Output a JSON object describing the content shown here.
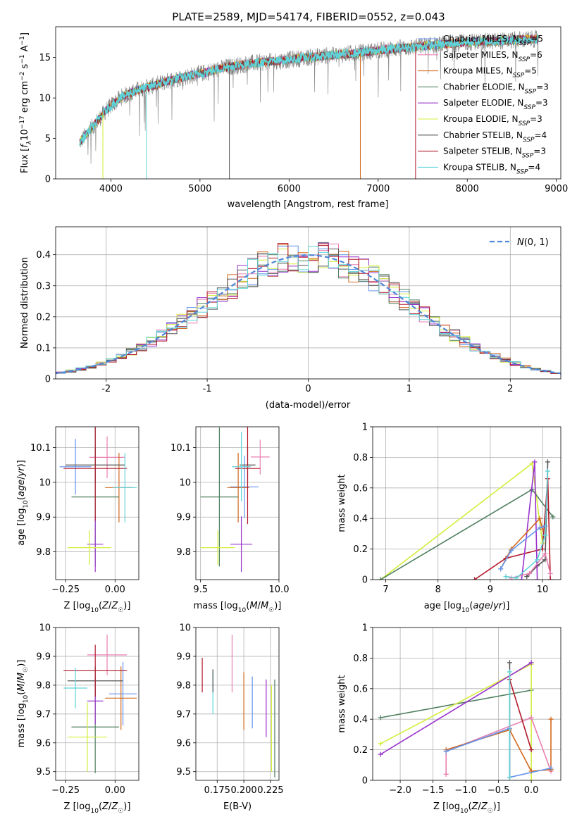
{
  "title": "PLATE=2589, MJD=54174, FIBERID=0552, z=0.043",
  "colors": {
    "Chabrier MILES": "#6495ed",
    "Salpeter MILES": "#e87fb0",
    "Kroupa MILES": "#d2691e",
    "Chabrier ELODIE": "#4f7f5f",
    "Salpeter ELODIE": "#9932cc",
    "Kroupa ELODIE": "#d4ed3a",
    "Chabrier STELIB": "#555555",
    "Salpeter STELIB": "#b2182b",
    "Kroupa STELIB": "#5fd3d8",
    "data": "#808080",
    "gaussian": "#4f86d8"
  },
  "chart_data": [
    {
      "type": "line",
      "panel": "spectrum",
      "title": "PLATE=2589, MJD=54174, FIBERID=0552, z=0.043",
      "xlabel": "wavelength [Angstrom, rest frame]",
      "ylabel": "Flux [f_λ 10^-17 erg cm^-2 s^-1 A^-1]",
      "xlim": [
        3380,
        9050
      ],
      "ylim": [
        0,
        18.8
      ],
      "xticks": [
        4000,
        5000,
        6000,
        7000,
        8000,
        9000
      ],
      "yticks": [
        0,
        5,
        10,
        15
      ],
      "legend_position": "top-right",
      "continuum": {
        "x": [
          3650,
          3800,
          3950,
          4100,
          4300,
          4500,
          4700,
          5000,
          5300,
          5600,
          5900,
          6200,
          6500,
          6800,
          7100,
          7400,
          7700,
          8000,
          8300,
          8600,
          8800
        ],
        "y": [
          4.5,
          6.5,
          8.5,
          10.0,
          11.0,
          11.6,
          12.3,
          13.0,
          13.8,
          14.3,
          14.6,
          15.0,
          15.3,
          15.6,
          16.0,
          16.3,
          16.6,
          16.9,
          17.0,
          17.2,
          17.3
        ]
      },
      "series": [
        {
          "name": "Chabrier MILES",
          "nssp": "5"
        },
        {
          "name": "Salpeter MILES",
          "nssp": "6"
        },
        {
          "name": "Kroupa MILES",
          "nssp": "5"
        },
        {
          "name": "Chabrier ELODIE",
          "nssp": "3"
        },
        {
          "name": "Salpeter ELODIE",
          "nssp": "3"
        },
        {
          "name": "Kroupa ELODIE",
          "nssp": "3"
        },
        {
          "name": "Chabrier STELIB",
          "nssp": "4"
        },
        {
          "name": "Salpeter STELIB",
          "nssp": "3"
        },
        {
          "name": "Kroupa STELIB",
          "nssp": "4"
        }
      ]
    },
    {
      "type": "histogram",
      "panel": "residuals",
      "xlabel": "(data-model)/error",
      "ylabel": "Normed distribution",
      "xlim": [
        -2.5,
        2.5
      ],
      "ylim": [
        0,
        0.49
      ],
      "xticks": [
        -2,
        -1,
        0,
        1,
        2
      ],
      "yticks": [
        0.0,
        0.1,
        0.2,
        0.3,
        0.4
      ],
      "grid": true,
      "legend_position": "top-right",
      "legend_label": "N(0,1)"
    },
    {
      "type": "scatter",
      "panel": "age-vs-Z",
      "xlabel": "Z [log10(Z/Z☉)]",
      "ylabel": "age [log10(age/yr)]",
      "xlim": [
        -0.3,
        0.12
      ],
      "ylim": [
        9.72,
        10.16
      ],
      "xticks": [
        -0.25,
        0.0
      ],
      "yticks": [
        9.8,
        9.9,
        10.0,
        10.1
      ],
      "grid": true,
      "points": [
        {
          "series": "Chabrier MILES",
          "x": -0.2,
          "y": 10.045,
          "xerr": 0.08,
          "yerr": 0.08
        },
        {
          "series": "Salpeter MILES",
          "x": -0.04,
          "y": 10.072,
          "xerr": 0.09,
          "yerr": 0.06
        },
        {
          "series": "Kroupa MILES",
          "x": 0.02,
          "y": 9.985,
          "xerr": 0.07,
          "yerr": 0.1
        },
        {
          "series": "Chabrier ELODIE",
          "x": -0.1,
          "y": 9.958,
          "xerr": 0.12,
          "yerr": 0.2
        },
        {
          "series": "Salpeter ELODIE",
          "x": -0.1,
          "y": 9.822,
          "xerr": 0.04,
          "yerr": 0.08
        },
        {
          "series": "Kroupa ELODIE",
          "x": -0.13,
          "y": 9.812,
          "xerr": 0.11,
          "yerr": 0.05
        },
        {
          "series": "Chabrier STELIB",
          "x": -0.1,
          "y": 10.05,
          "xerr": 0.15,
          "yerr": 0.05
        },
        {
          "series": "Salpeter STELIB",
          "x": -0.1,
          "y": 10.04,
          "xerr": 0.16,
          "yerr": 0.15
        },
        {
          "series": "Kroupa STELIB",
          "x": 0.05,
          "y": 9.985,
          "xerr": 0.06,
          "yerr": 0.1
        }
      ]
    },
    {
      "type": "scatter",
      "panel": "age-vs-mass",
      "xlabel": "mass [log10(M/M☉)]",
      "ylabel": "",
      "xlim": [
        9.47,
        10.0
      ],
      "ylim": [
        9.72,
        10.16
      ],
      "xticks": [
        9.5,
        10.0
      ],
      "yticks": [
        9.8,
        9.9,
        10.0,
        10.1
      ],
      "grid": true,
      "points": [
        {
          "series": "Chabrier MILES",
          "x": 9.78,
          "y": 9.987,
          "xerr": 0.09,
          "yerr": 0.09
        },
        {
          "series": "Salpeter MILES",
          "x": 9.88,
          "y": 10.073,
          "xerr": 0.06,
          "yerr": 0.05
        },
        {
          "series": "Kroupa MILES",
          "x": 9.74,
          "y": 9.985,
          "xerr": 0.07,
          "yerr": 0.1
        },
        {
          "series": "Chabrier ELODIE",
          "x": 9.62,
          "y": 9.958,
          "xerr": 0.12,
          "yerr": 0.2
        },
        {
          "series": "Salpeter ELODIE",
          "x": 9.76,
          "y": 9.822,
          "xerr": 0.07,
          "yerr": 0.08
        },
        {
          "series": "Kroupa ELODIE",
          "x": 9.61,
          "y": 9.812,
          "xerr": 0.11,
          "yerr": 0.05
        },
        {
          "series": "Chabrier STELIB",
          "x": 9.8,
          "y": 10.05,
          "xerr": 0.05,
          "yerr": 0.05
        },
        {
          "series": "Salpeter STELIB",
          "x": 9.8,
          "y": 10.04,
          "xerr": 0.08,
          "yerr": 0.16
        },
        {
          "series": "Kroupa STELIB",
          "x": 9.76,
          "y": 10.045,
          "xerr": 0.06,
          "yerr": 0.1
        }
      ]
    },
    {
      "type": "line",
      "panel": "mass-weight-vs-age",
      "xlabel": "age [log10(age/yr)]",
      "ylabel": "mass weight",
      "xlim": [
        6.75,
        10.35
      ],
      "ylim": [
        0,
        1.0
      ],
      "xticks": [
        7,
        8,
        9,
        10
      ],
      "yticks": [
        0.0,
        0.2,
        0.4,
        0.6,
        0.8,
        1.0
      ],
      "grid": true,
      "series": [
        {
          "name": "Kroupa ELODIE",
          "x": [
            6.9,
            9.8,
            10.0
          ],
          "y": [
            0.0,
            0.76,
            0.24
          ]
        },
        {
          "name": "Chabrier ELODIE",
          "x": [
            6.9,
            9.8,
            10.2
          ],
          "y": [
            0.0,
            0.59,
            0.41
          ]
        },
        {
          "name": "Salpeter STELIB",
          "x": [
            8.7,
            9.3,
            10.0,
            10.1,
            10.15
          ],
          "y": [
            0.0,
            0.14,
            0.2,
            0.66,
            0.0
          ]
        },
        {
          "name": "Chabrier STELIB",
          "x": [
            9.7,
            9.9,
            10.05,
            10.1
          ],
          "y": [
            0.02,
            0.09,
            0.13,
            0.77
          ]
        },
        {
          "name": "Salpeter ELODIE",
          "x": [
            9.6,
            9.85,
            9.9
          ],
          "y": [
            0.0,
            0.77,
            0.0
          ]
        },
        {
          "name": "Kroupa MILES",
          "x": [
            9.2,
            9.4,
            9.95,
            10.0
          ],
          "y": [
            0.07,
            0.2,
            0.4,
            0.33
          ]
        },
        {
          "name": "Chabrier MILES",
          "x": [
            9.2,
            9.4,
            9.95,
            10.05
          ],
          "y": [
            0.07,
            0.19,
            0.34,
            0.35
          ]
        },
        {
          "name": "Salpeter MILES",
          "x": [
            9.4,
            9.75,
            10.05,
            10.15
          ],
          "y": [
            0.01,
            0.04,
            0.17,
            0.04
          ]
        },
        {
          "name": "Kroupa STELIB",
          "x": [
            9.3,
            9.5,
            9.9,
            10.05,
            10.1
          ],
          "y": [
            0.02,
            0.01,
            0.13,
            0.29,
            0.71
          ]
        }
      ]
    },
    {
      "type": "scatter",
      "panel": "mass-vs-Z",
      "xlabel": "Z [log10(Z/Z☉)]",
      "ylabel": "mass [log10(M/M☉)]",
      "xlim": [
        -0.3,
        0.12
      ],
      "ylim": [
        9.47,
        10.0
      ],
      "xticks": [
        -0.25,
        0.0
      ],
      "yticks": [
        9.5,
        9.6,
        9.7,
        9.8,
        9.9,
        10.0
      ],
      "grid": true,
      "points": [
        {
          "series": "Chabrier MILES",
          "x": 0.04,
          "y": 9.77,
          "xerr": 0.07,
          "yerr": 0.11
        },
        {
          "series": "Salpeter MILES",
          "x": -0.04,
          "y": 9.905,
          "xerr": 0.1,
          "yerr": 0.07
        },
        {
          "series": "Kroupa MILES",
          "x": 0.03,
          "y": 9.755,
          "xerr": 0.08,
          "yerr": 0.11
        },
        {
          "series": "Chabrier ELODIE",
          "x": -0.1,
          "y": 9.655,
          "xerr": 0.12,
          "yerr": 0.16
        },
        {
          "series": "Salpeter ELODIE",
          "x": -0.1,
          "y": 9.745,
          "xerr": 0.04,
          "yerr": 0.08
        },
        {
          "series": "Kroupa ELODIE",
          "x": -0.14,
          "y": 9.62,
          "xerr": 0.1,
          "yerr": 0.12
        },
        {
          "series": "Chabrier STELIB",
          "x": -0.1,
          "y": 9.815,
          "xerr": 0.14,
          "yerr": 0.05
        },
        {
          "series": "Salpeter STELIB",
          "x": -0.1,
          "y": 9.85,
          "xerr": 0.16,
          "yerr": 0.09
        },
        {
          "series": "Kroupa STELIB",
          "x": -0.2,
          "y": 9.79,
          "xerr": 0.06,
          "yerr": 0.07
        }
      ]
    },
    {
      "type": "scatter",
      "panel": "mass-vs-ebv",
      "xlabel": "E(B-V)",
      "ylabel": "",
      "xlim": [
        0.155,
        0.233
      ],
      "ylim": [
        9.47,
        10.0
      ],
      "xticks": [
        0.175,
        0.2,
        0.225
      ],
      "xticklabels": [
        "0.175",
        "0.200",
        "0.225"
      ],
      "yticks": [
        9.5,
        9.6,
        9.7,
        9.8,
        9.9,
        10.0
      ],
      "grid": true,
      "points": [
        {
          "series": "Salpeter STELIB",
          "x": 0.161,
          "y": 9.835,
          "yerr": 0.06
        },
        {
          "series": "Kroupa STELIB",
          "x": 0.171,
          "y": 9.775,
          "yerr": 0.075
        },
        {
          "series": "Chabrier STELIB",
          "x": 0.171,
          "y": 9.815,
          "yerr": 0.04
        },
        {
          "series": "Salpeter MILES",
          "x": 0.189,
          "y": 9.875,
          "yerr": 0.1
        },
        {
          "series": "Kroupa MILES",
          "x": 0.2,
          "y": 9.745,
          "yerr": 0.1
        },
        {
          "series": "Chabrier MILES",
          "x": 0.208,
          "y": 9.74,
          "yerr": 0.09
        },
        {
          "series": "Salpeter ELODIE",
          "x": 0.221,
          "y": 9.72,
          "yerr": 0.1
        },
        {
          "series": "Kroupa ELODIE",
          "x": 0.226,
          "y": 9.65,
          "yerr": 0.15
        },
        {
          "series": "Chabrier ELODIE",
          "x": 0.229,
          "y": 9.65,
          "yerr": 0.17
        }
      ]
    },
    {
      "type": "line",
      "panel": "mass-weight-vs-Z",
      "xlabel": "Z [log10(Z/Z☉)]",
      "ylabel": "mass weight",
      "xlim": [
        -2.42,
        0.45
      ],
      "ylim": [
        0,
        1.0
      ],
      "xticks": [
        -2.0,
        -1.5,
        -1.0,
        -0.5,
        0.0
      ],
      "yticks": [
        0.0,
        0.2,
        0.4,
        0.6,
        0.8,
        1.0
      ],
      "grid": true,
      "series": [
        {
          "name": "Chabrier ELODIE",
          "x": [
            -2.3,
            0.0
          ],
          "y": [
            0.41,
            0.59
          ]
        },
        {
          "name": "Kroupa ELODIE",
          "x": [
            -2.3,
            0.0,
            0.0
          ],
          "y": [
            0.24,
            0.76,
            0.0
          ]
        },
        {
          "name": "Salpeter ELODIE",
          "x": [
            -2.3,
            0.0
          ],
          "y": [
            0.17,
            0.77
          ]
        },
        {
          "name": "Salpeter MILES",
          "x": [
            -1.3,
            -1.3,
            0.0,
            0.3
          ],
          "y": [
            0.04,
            0.19,
            0.41,
            0.06
          ]
        },
        {
          "name": "Kroupa MILES",
          "x": [
            -1.3,
            -0.33,
            0.0,
            0.3,
            0.3
          ],
          "y": [
            0.2,
            0.33,
            0.06,
            0.07,
            0.4
          ]
        },
        {
          "name": "Chabrier MILES",
          "x": [
            -1.3,
            -0.33,
            -0.33,
            0.3
          ],
          "y": [
            0.19,
            0.34,
            0.02,
            0.08
          ]
        },
        {
          "name": "Salpeter STELIB",
          "x": [
            -0.33,
            0.0
          ],
          "y": [
            0.66,
            0.2
          ]
        },
        {
          "name": "Chabrier STELIB",
          "x": [
            -0.33,
            -0.33
          ],
          "y": [
            0.77,
            0.02
          ]
        },
        {
          "name": "Kroupa STELIB",
          "x": [
            -0.33,
            -0.33
          ],
          "y": [
            0.71,
            0.02
          ]
        }
      ]
    }
  ]
}
